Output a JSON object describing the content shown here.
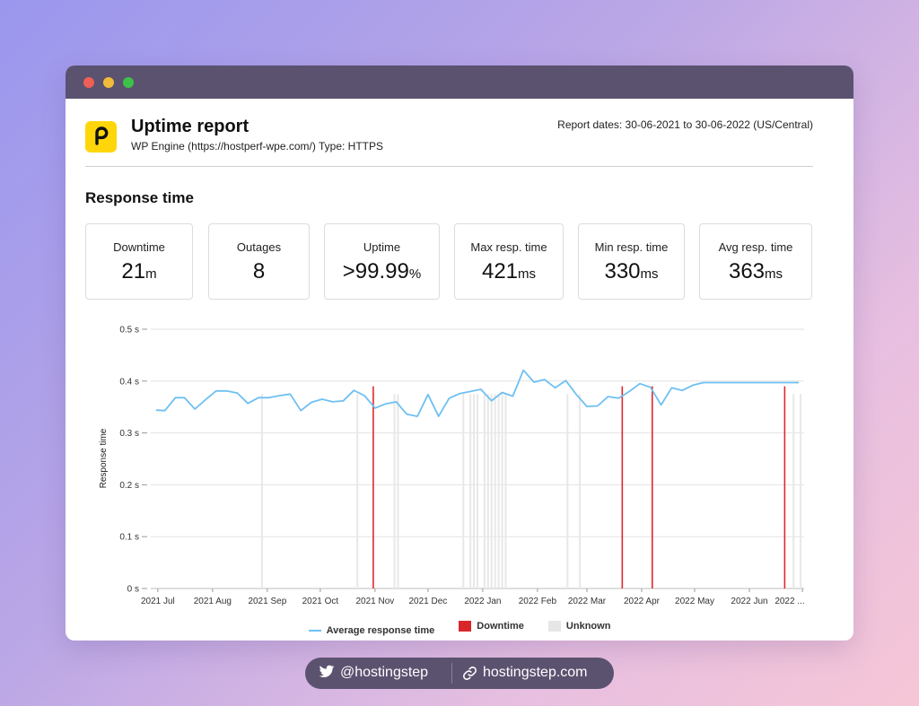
{
  "window": {
    "traffic_lights": [
      "close",
      "minimize",
      "maximize"
    ]
  },
  "header": {
    "logo_icon": "uptime-logo-icon",
    "title": "Uptime report",
    "subtitle": "WP Engine (https://hostperf-wpe.com/) Type: HTTPS",
    "report_dates": "Report dates: 30-06-2021 to 30-06-2022 (US/Central)"
  },
  "section": {
    "title": "Response time"
  },
  "stats": [
    {
      "label": "Downtime",
      "value": "21",
      "unit": "m"
    },
    {
      "label": "Outages",
      "value": "8",
      "unit": ""
    },
    {
      "label": "Uptime",
      "value": ">99.99",
      "unit": "%"
    },
    {
      "label": "Max resp. time",
      "value": "421",
      "unit": "ms"
    },
    {
      "label": "Min resp. time",
      "value": "330",
      "unit": "ms"
    },
    {
      "label": "Avg resp. time",
      "value": "363",
      "unit": "ms"
    }
  ],
  "chart_data": {
    "type": "line",
    "title": "",
    "ylabel": "Response time",
    "xlabel": "",
    "ylim": [
      0,
      0.5
    ],
    "y_ticks": [
      "0 s",
      "0.1 s",
      "0.2 s",
      "0.3 s",
      "0.4 s",
      "0.5 s"
    ],
    "y_tick_values": [
      0,
      0.1,
      0.2,
      0.3,
      0.4,
      0.5
    ],
    "x_tick_labels": [
      "2021 Jul",
      "2021 Aug",
      "2021 Sep",
      "2021 Oct",
      "2021 Nov",
      "2021 Dec",
      "2022 Jan",
      "2022 Feb",
      "2022 Mar",
      "2022 Apr",
      "2022 May",
      "2022 Jun",
      "2022 ..."
    ],
    "x_tick_dates": [
      "2021-07-01",
      "2021-08-01",
      "2021-09-01",
      "2021-10-01",
      "2021-11-01",
      "2021-12-01",
      "2022-01-01",
      "2022-02-01",
      "2022-03-01",
      "2022-04-01",
      "2022-05-01",
      "2022-06-01",
      "2022-07-01"
    ],
    "grid": true,
    "legend_position": "bottom",
    "series": [
      {
        "name": "Average response time",
        "color": "#6ec0f2",
        "x": [
          "2021-06-30",
          "2021-07-05",
          "2021-07-11",
          "2021-07-16",
          "2021-07-22",
          "2021-07-28",
          "2021-08-03",
          "2021-08-09",
          "2021-08-15",
          "2021-08-21",
          "2021-08-27",
          "2021-09-02",
          "2021-09-08",
          "2021-09-14",
          "2021-09-20",
          "2021-09-26",
          "2021-10-02",
          "2021-10-08",
          "2021-10-14",
          "2021-10-20",
          "2021-10-26",
          "2021-11-01",
          "2021-11-07",
          "2021-11-13",
          "2021-11-19",
          "2021-11-25",
          "2021-12-01",
          "2021-12-07",
          "2021-12-13",
          "2021-12-19",
          "2021-12-25",
          "2021-12-31",
          "2022-01-06",
          "2022-01-12",
          "2022-01-18",
          "2022-01-24",
          "2022-01-30",
          "2022-02-05",
          "2022-02-11",
          "2022-02-17",
          "2022-02-23",
          "2022-03-01",
          "2022-03-07",
          "2022-03-13",
          "2022-03-19",
          "2022-03-25",
          "2022-03-31",
          "2022-04-06",
          "2022-04-12",
          "2022-04-18",
          "2022-04-24",
          "2022-04-30",
          "2022-05-06",
          "2022-05-12",
          "2022-05-18",
          "2022-05-24",
          "2022-05-30",
          "2022-06-05",
          "2022-06-11",
          "2022-06-17",
          "2022-06-23",
          "2022-06-29"
        ],
        "values": [
          0.344,
          0.343,
          0.368,
          0.368,
          0.346,
          0.364,
          0.381,
          0.381,
          0.377,
          0.357,
          0.368,
          0.368,
          0.372,
          0.375,
          0.343,
          0.359,
          0.365,
          0.36,
          0.362,
          0.382,
          0.372,
          0.348,
          0.356,
          0.36,
          0.336,
          0.332,
          0.374,
          0.332,
          0.367,
          0.376,
          0.38,
          0.384,
          0.362,
          0.378,
          0.371,
          0.421,
          0.398,
          0.403,
          0.387,
          0.401,
          0.374,
          0.351,
          0.352,
          0.37,
          0.367,
          0.38,
          0.395,
          0.388,
          0.354,
          0.387,
          0.382,
          0.392,
          0.397,
          0.397,
          0.397,
          0.397,
          0.397,
          0.397,
          0.397,
          0.397,
          0.397,
          0.397
        ]
      },
      {
        "name": "Downtime",
        "color": "#e0282b",
        "dates": [
          "2021-10-31",
          "2022-03-21",
          "2022-04-07",
          "2022-06-21"
        ]
      },
      {
        "name": "Unknown",
        "color": "#e8e8e8",
        "dates": [
          "2021-08-29",
          "2021-10-22",
          "2021-11-12",
          "2021-11-14",
          "2021-12-21",
          "2021-12-25",
          "2021-12-27",
          "2021-12-29",
          "2022-01-02",
          "2022-01-04",
          "2022-01-06",
          "2022-01-08",
          "2022-01-10",
          "2022-01-12",
          "2022-01-14",
          "2022-02-18",
          "2022-02-25",
          "2022-06-26",
          "2022-06-30"
        ]
      }
    ]
  },
  "legend": {
    "line_label": "Average response time",
    "downtime_label": "Downtime",
    "unknown_label": "Unknown",
    "downtime_color": "#d9262a",
    "unknown_color": "#e6e6e6"
  },
  "footer": {
    "twitter_icon": "twitter-icon",
    "twitter_handle": "@hostingstep",
    "link_icon": "link-icon",
    "website": "hostingstep.com"
  }
}
